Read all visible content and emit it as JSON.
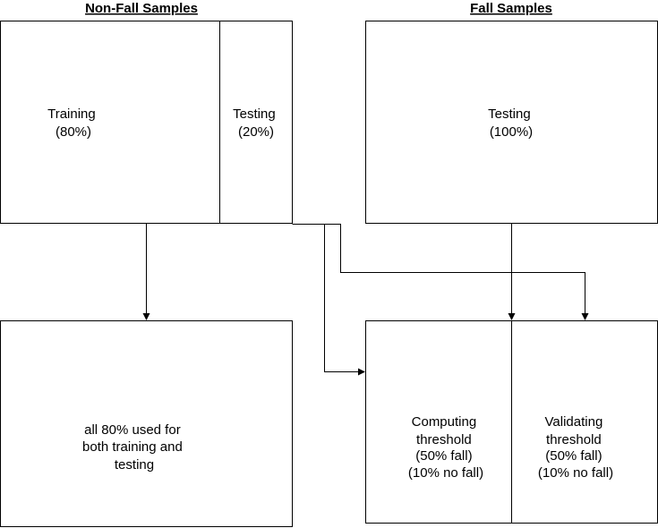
{
  "headings": {
    "non_fall": "Non-Fall Samples",
    "fall": "Fall Samples"
  },
  "non_fall_box": {
    "training": {
      "line1": "Training",
      "line2": "(80%)"
    },
    "testing": {
      "line1": "Testing",
      "line2": "(20%)"
    }
  },
  "fall_box": {
    "testing": {
      "line1": "Testing",
      "line2": "(100%)"
    }
  },
  "training_box": {
    "line1": "all 80% used for",
    "line2": "both training and",
    "line3": "testing"
  },
  "threshold_box": {
    "computing": {
      "line1": "Computing",
      "line2": "threshold",
      "line3": "(50% fall)",
      "line4": "(10% no fall)"
    },
    "validating": {
      "line1": "Validating",
      "line2": "threshold",
      "line3": "(50% fall)",
      "line4": "(10% no fall)"
    }
  }
}
